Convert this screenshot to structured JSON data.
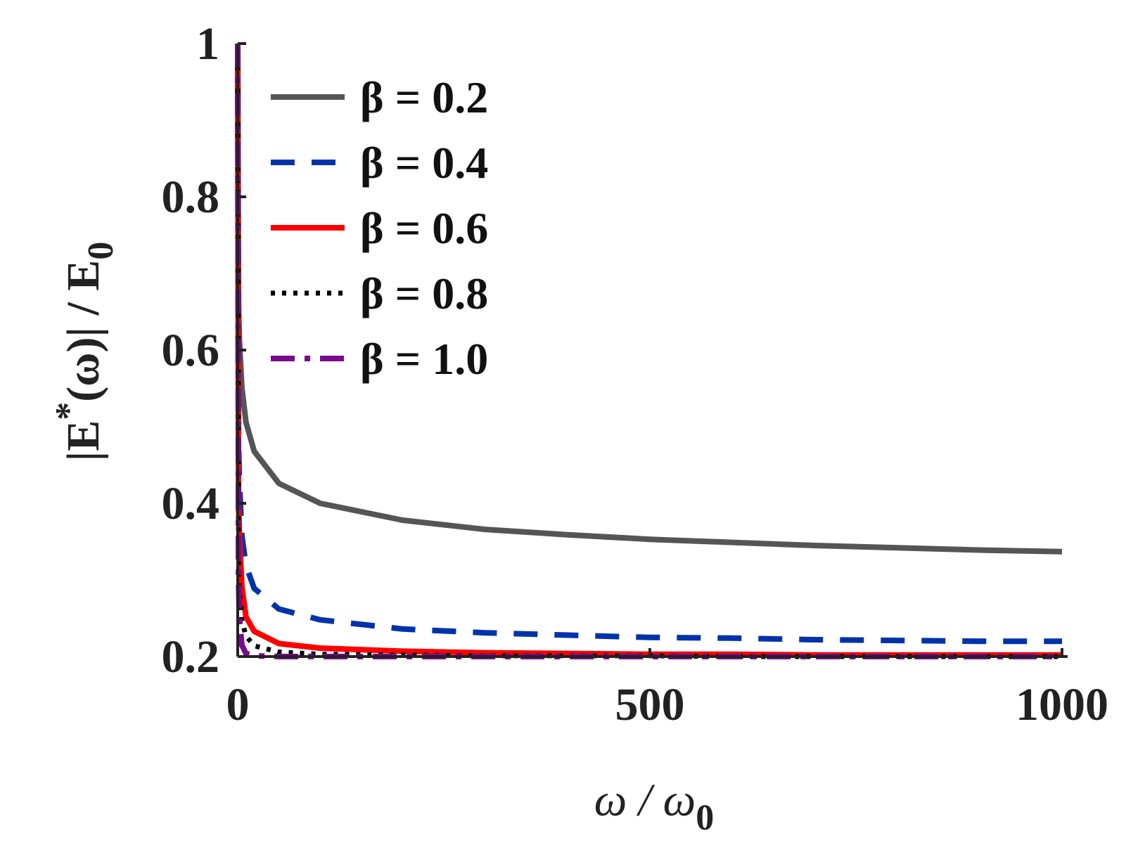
{
  "chart_data": {
    "type": "line",
    "xlabel": {
      "main": "ω / ω",
      "sub": "0"
    },
    "ylabel": {
      "pre": "|E",
      "sup": "*",
      "post": "(ω)| / E",
      "sub": "0"
    },
    "xlim": [
      0,
      1000
    ],
    "ylim": [
      0.2,
      1
    ],
    "xticks": [
      "0",
      "500",
      "1000"
    ],
    "yticks": [
      "0.2",
      "0.4",
      "0.6",
      "0.8",
      "1"
    ],
    "grid": false,
    "legend_position": "top-left",
    "x": [
      0,
      1,
      2,
      5,
      10,
      20,
      50,
      100,
      200,
      300,
      400,
      500,
      600,
      700,
      800,
      900,
      1000
    ],
    "series": [
      {
        "name": "β = 0.2",
        "beta": 0.2,
        "color": "#555555",
        "style": "solid",
        "values": [
          1.0,
          0.659,
          0.614,
          0.551,
          0.506,
          0.468,
          0.426,
          0.4,
          0.378,
          0.366,
          0.359,
          0.353,
          0.349,
          0.345,
          0.342,
          0.339,
          0.337
        ]
      },
      {
        "name": "β = 0.4",
        "beta": 0.4,
        "color": "#0033aa",
        "style": "dashed",
        "values": [
          1.0,
          0.48,
          0.431,
          0.358,
          0.319,
          0.289,
          0.262,
          0.248,
          0.236,
          0.231,
          0.228,
          0.225,
          0.224,
          0.222,
          0.221,
          0.22,
          0.22
        ]
      },
      {
        "name": "β = 0.6",
        "beta": 0.6,
        "color": "#ff0000",
        "style": "solid",
        "values": [
          1.0,
          0.4,
          0.361,
          0.292,
          0.252,
          0.233,
          0.217,
          0.211,
          0.207,
          0.205,
          0.204,
          0.203,
          0.203,
          0.202,
          0.202,
          0.202,
          0.202
        ]
      },
      {
        "name": "β = 0.8",
        "beta": 0.8,
        "color": "#000000",
        "style": "dotted",
        "values": [
          1.0,
          0.342,
          0.289,
          0.247,
          0.227,
          0.214,
          0.206,
          0.203,
          0.202,
          0.201,
          0.201,
          0.201,
          0.2,
          0.2,
          0.2,
          0.2,
          0.2
        ]
      },
      {
        "name": "β = 1.0",
        "beta": 1.0,
        "color": "#7a0a8c",
        "style": "dashdot",
        "values": [
          1.0,
          0.3,
          0.25,
          0.215,
          0.204,
          0.201,
          0.2,
          0.2,
          0.2,
          0.2,
          0.2,
          0.2,
          0.2,
          0.2,
          0.2,
          0.2,
          0.2
        ]
      }
    ]
  }
}
